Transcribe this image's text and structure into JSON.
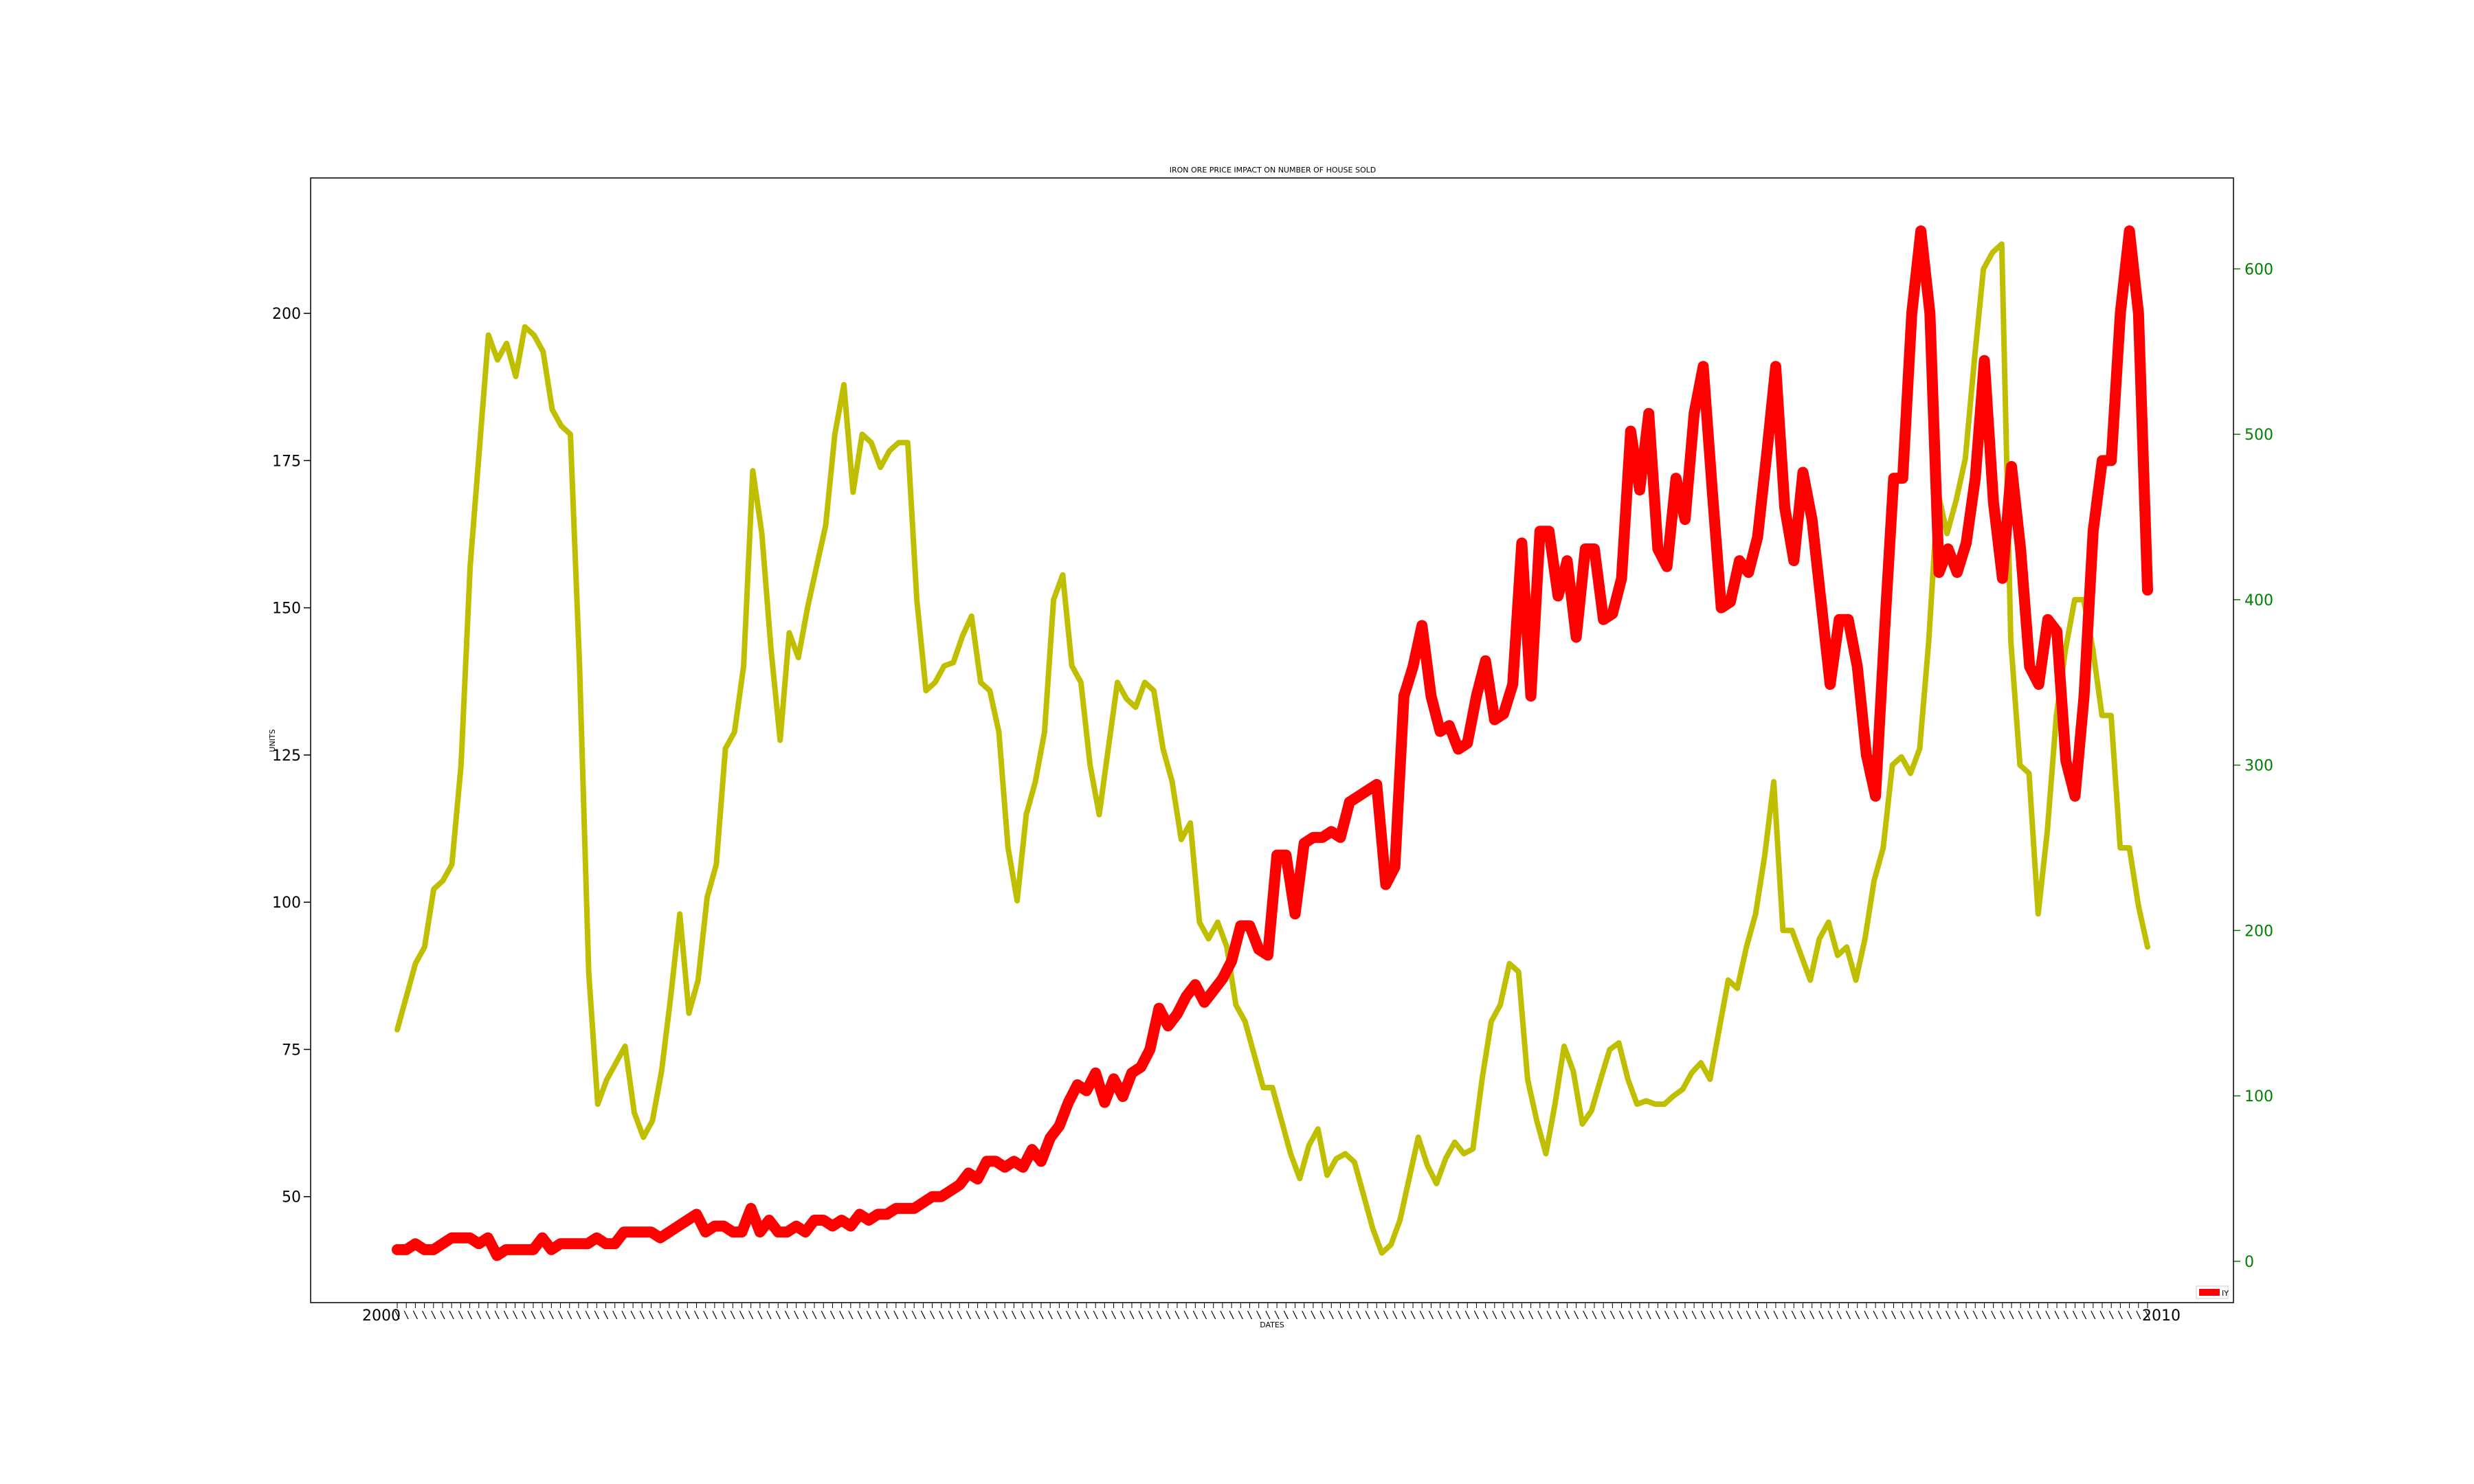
{
  "chart_data": {
    "type": "line",
    "title": "IRON ORE PRICE IMPACT ON NUMBER OF HOUSE SOLD",
    "xlabel": "DATES",
    "ylabel": "UNITS",
    "x_first_label": "2000",
    "x_last_label": "2010",
    "ylim": [
      32,
      223
    ],
    "y_ticks": [
      50,
      75,
      100,
      125,
      150,
      175,
      200
    ],
    "y2lim": [
      -25,
      655
    ],
    "y2_ticks": [
      0,
      100,
      200,
      300,
      400,
      500,
      600
    ],
    "legend": {
      "position": "bottom-right",
      "entries": [
        "IY"
      ]
    },
    "colors": {
      "iron_ore": "#ff0000",
      "houses": "#bfbf00",
      "right_axis": "#008000"
    },
    "series": [
      {
        "name": "IY",
        "axis": "left",
        "values": [
          41,
          41,
          42,
          41,
          41,
          42,
          43,
          43,
          43,
          42,
          43,
          40,
          41,
          41,
          41,
          41,
          43,
          41,
          42,
          42,
          42,
          42,
          43,
          42,
          42,
          44,
          44,
          44,
          44,
          43,
          44,
          45,
          46,
          47,
          44,
          45,
          45,
          44,
          44,
          48,
          44,
          46,
          44,
          44,
          45,
          44,
          46,
          46,
          45,
          46,
          45,
          47,
          46,
          47,
          47,
          48,
          48,
          48,
          49,
          50,
          50,
          51,
          52,
          54,
          53,
          56,
          56,
          55,
          56,
          55,
          58,
          56,
          60,
          62,
          66,
          69,
          68,
          71,
          66,
          70,
          67,
          71,
          72,
          75,
          82,
          79,
          81,
          84,
          86,
          83,
          85,
          87,
          90,
          96,
          96,
          92,
          91,
          108,
          108,
          98,
          110,
          111,
          111,
          112,
          111,
          117,
          118,
          119,
          120,
          103,
          106,
          135,
          140,
          147,
          135,
          129,
          130,
          126,
          127,
          135,
          141,
          131,
          132,
          137,
          161,
          135,
          163,
          163,
          152,
          158,
          145,
          160,
          160,
          148,
          149,
          155,
          180,
          170,
          183,
          160,
          157,
          172,
          165,
          183,
          191,
          170,
          150,
          151,
          158,
          156,
          162,
          176,
          191,
          167,
          158,
          173,
          165,
          151,
          137,
          148,
          148,
          140,
          125,
          118,
          146,
          172,
          172,
          200,
          214,
          200,
          156,
          160,
          156,
          161,
          172,
          192,
          168,
          155,
          174,
          160,
          140,
          137,
          148,
          146,
          124,
          118,
          135,
          163,
          175,
          175,
          200,
          214,
          200,
          153
        ]
      },
      {
        "name": "",
        "axis": "right",
        "values": [
          140,
          160,
          180,
          190,
          225,
          230,
          240,
          300,
          420,
          490,
          560,
          545,
          555,
          535,
          565,
          560,
          550,
          515,
          505,
          500,
          360,
          175,
          95,
          110,
          120,
          130,
          90,
          75,
          85,
          115,
          160,
          210,
          150,
          170,
          220,
          240,
          310,
          320,
          360,
          478,
          440,
          370,
          315,
          380,
          365,
          395,
          420,
          445,
          500,
          530,
          465,
          500,
          495,
          480,
          490,
          495,
          495,
          400,
          345,
          350,
          360,
          362,
          378,
          390,
          350,
          345,
          320,
          250,
          218,
          270,
          290,
          320,
          400,
          415,
          360,
          350,
          300,
          270,
          310,
          350,
          340,
          335,
          350,
          345,
          310,
          290,
          255,
          265,
          205,
          195,
          205,
          190,
          155,
          145,
          125,
          105,
          105,
          85,
          65,
          50,
          70,
          80,
          52,
          62,
          65,
          60,
          40,
          20,
          5,
          10,
          25,
          50,
          75,
          58,
          47,
          62,
          72,
          65,
          68,
          110,
          145,
          155,
          180,
          175,
          110,
          85,
          65,
          95,
          130,
          115,
          83,
          91,
          110,
          128,
          132,
          110,
          95,
          97,
          95,
          95,
          100,
          104,
          114,
          120,
          110,
          140,
          170,
          165,
          190,
          210,
          245,
          290,
          200,
          200,
          185,
          170,
          195,
          205,
          185,
          190,
          170,
          195,
          230,
          250,
          300,
          305,
          295,
          310,
          375,
          465,
          440,
          460,
          485,
          545,
          600,
          610,
          615,
          375,
          300,
          295,
          210,
          260,
          330,
          370,
          400,
          400,
          370,
          330,
          330,
          250,
          250,
          215,
          190
        ]
      }
    ]
  }
}
